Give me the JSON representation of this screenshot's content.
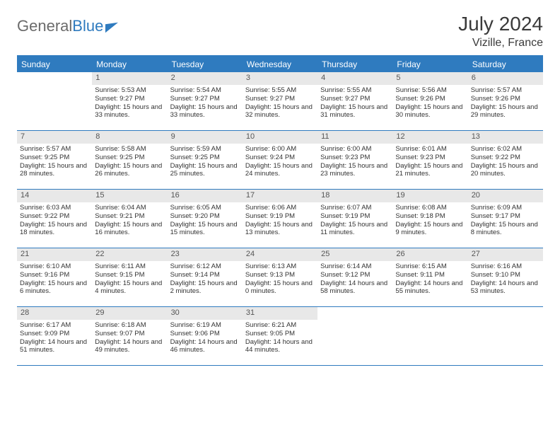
{
  "brand": {
    "part1": "General",
    "part2": "Blue"
  },
  "title": "July 2024",
  "location": "Vizille, France",
  "colors": {
    "accent": "#2f7bbf",
    "header_bg": "#2f7bbf",
    "daynum_bg": "#e8e8e8",
    "text": "#333333",
    "logo_gray": "#6b6b6b"
  },
  "dow": [
    "Sunday",
    "Monday",
    "Tuesday",
    "Wednesday",
    "Thursday",
    "Friday",
    "Saturday"
  ],
  "weeks": [
    [
      {
        "n": "",
        "empty": true
      },
      {
        "n": "1",
        "sr": "Sunrise: 5:53 AM",
        "ss": "Sunset: 9:27 PM",
        "dl": "Daylight: 15 hours and 33 minutes."
      },
      {
        "n": "2",
        "sr": "Sunrise: 5:54 AM",
        "ss": "Sunset: 9:27 PM",
        "dl": "Daylight: 15 hours and 33 minutes."
      },
      {
        "n": "3",
        "sr": "Sunrise: 5:55 AM",
        "ss": "Sunset: 9:27 PM",
        "dl": "Daylight: 15 hours and 32 minutes."
      },
      {
        "n": "4",
        "sr": "Sunrise: 5:55 AM",
        "ss": "Sunset: 9:27 PM",
        "dl": "Daylight: 15 hours and 31 minutes."
      },
      {
        "n": "5",
        "sr": "Sunrise: 5:56 AM",
        "ss": "Sunset: 9:26 PM",
        "dl": "Daylight: 15 hours and 30 minutes."
      },
      {
        "n": "6",
        "sr": "Sunrise: 5:57 AM",
        "ss": "Sunset: 9:26 PM",
        "dl": "Daylight: 15 hours and 29 minutes."
      }
    ],
    [
      {
        "n": "7",
        "sr": "Sunrise: 5:57 AM",
        "ss": "Sunset: 9:25 PM",
        "dl": "Daylight: 15 hours and 28 minutes."
      },
      {
        "n": "8",
        "sr": "Sunrise: 5:58 AM",
        "ss": "Sunset: 9:25 PM",
        "dl": "Daylight: 15 hours and 26 minutes."
      },
      {
        "n": "9",
        "sr": "Sunrise: 5:59 AM",
        "ss": "Sunset: 9:25 PM",
        "dl": "Daylight: 15 hours and 25 minutes."
      },
      {
        "n": "10",
        "sr": "Sunrise: 6:00 AM",
        "ss": "Sunset: 9:24 PM",
        "dl": "Daylight: 15 hours and 24 minutes."
      },
      {
        "n": "11",
        "sr": "Sunrise: 6:00 AM",
        "ss": "Sunset: 9:23 PM",
        "dl": "Daylight: 15 hours and 23 minutes."
      },
      {
        "n": "12",
        "sr": "Sunrise: 6:01 AM",
        "ss": "Sunset: 9:23 PM",
        "dl": "Daylight: 15 hours and 21 minutes."
      },
      {
        "n": "13",
        "sr": "Sunrise: 6:02 AM",
        "ss": "Sunset: 9:22 PM",
        "dl": "Daylight: 15 hours and 20 minutes."
      }
    ],
    [
      {
        "n": "14",
        "sr": "Sunrise: 6:03 AM",
        "ss": "Sunset: 9:22 PM",
        "dl": "Daylight: 15 hours and 18 minutes."
      },
      {
        "n": "15",
        "sr": "Sunrise: 6:04 AM",
        "ss": "Sunset: 9:21 PM",
        "dl": "Daylight: 15 hours and 16 minutes."
      },
      {
        "n": "16",
        "sr": "Sunrise: 6:05 AM",
        "ss": "Sunset: 9:20 PM",
        "dl": "Daylight: 15 hours and 15 minutes."
      },
      {
        "n": "17",
        "sr": "Sunrise: 6:06 AM",
        "ss": "Sunset: 9:19 PM",
        "dl": "Daylight: 15 hours and 13 minutes."
      },
      {
        "n": "18",
        "sr": "Sunrise: 6:07 AM",
        "ss": "Sunset: 9:19 PM",
        "dl": "Daylight: 15 hours and 11 minutes."
      },
      {
        "n": "19",
        "sr": "Sunrise: 6:08 AM",
        "ss": "Sunset: 9:18 PM",
        "dl": "Daylight: 15 hours and 9 minutes."
      },
      {
        "n": "20",
        "sr": "Sunrise: 6:09 AM",
        "ss": "Sunset: 9:17 PM",
        "dl": "Daylight: 15 hours and 8 minutes."
      }
    ],
    [
      {
        "n": "21",
        "sr": "Sunrise: 6:10 AM",
        "ss": "Sunset: 9:16 PM",
        "dl": "Daylight: 15 hours and 6 minutes."
      },
      {
        "n": "22",
        "sr": "Sunrise: 6:11 AM",
        "ss": "Sunset: 9:15 PM",
        "dl": "Daylight: 15 hours and 4 minutes."
      },
      {
        "n": "23",
        "sr": "Sunrise: 6:12 AM",
        "ss": "Sunset: 9:14 PM",
        "dl": "Daylight: 15 hours and 2 minutes."
      },
      {
        "n": "24",
        "sr": "Sunrise: 6:13 AM",
        "ss": "Sunset: 9:13 PM",
        "dl": "Daylight: 15 hours and 0 minutes."
      },
      {
        "n": "25",
        "sr": "Sunrise: 6:14 AM",
        "ss": "Sunset: 9:12 PM",
        "dl": "Daylight: 14 hours and 58 minutes."
      },
      {
        "n": "26",
        "sr": "Sunrise: 6:15 AM",
        "ss": "Sunset: 9:11 PM",
        "dl": "Daylight: 14 hours and 55 minutes."
      },
      {
        "n": "27",
        "sr": "Sunrise: 6:16 AM",
        "ss": "Sunset: 9:10 PM",
        "dl": "Daylight: 14 hours and 53 minutes."
      }
    ],
    [
      {
        "n": "28",
        "sr": "Sunrise: 6:17 AM",
        "ss": "Sunset: 9:09 PM",
        "dl": "Daylight: 14 hours and 51 minutes."
      },
      {
        "n": "29",
        "sr": "Sunrise: 6:18 AM",
        "ss": "Sunset: 9:07 PM",
        "dl": "Daylight: 14 hours and 49 minutes."
      },
      {
        "n": "30",
        "sr": "Sunrise: 6:19 AM",
        "ss": "Sunset: 9:06 PM",
        "dl": "Daylight: 14 hours and 46 minutes."
      },
      {
        "n": "31",
        "sr": "Sunrise: 6:21 AM",
        "ss": "Sunset: 9:05 PM",
        "dl": "Daylight: 14 hours and 44 minutes."
      },
      {
        "n": "",
        "empty": true
      },
      {
        "n": "",
        "empty": true
      },
      {
        "n": "",
        "empty": true
      }
    ]
  ]
}
